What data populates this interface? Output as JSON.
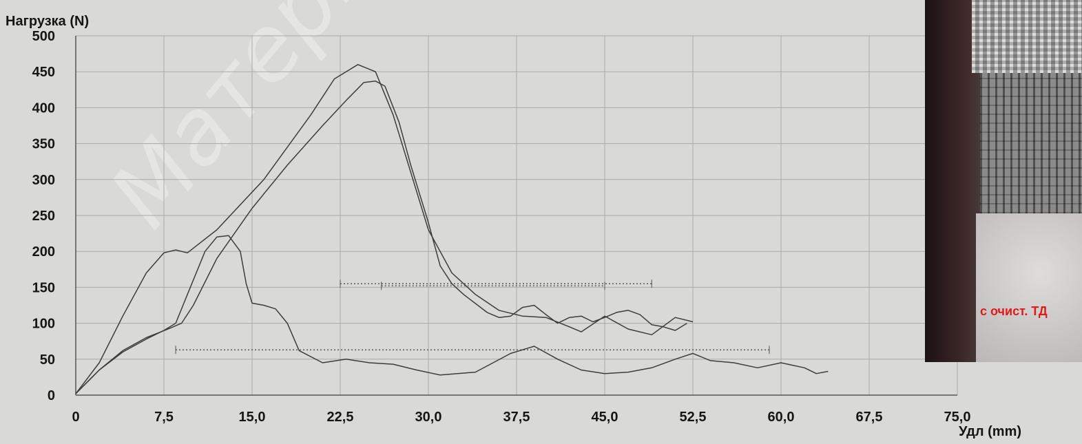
{
  "chart_data": {
    "type": "line",
    "title": "",
    "ylabel": "Нагрузка (N)",
    "xlabel": "Удл (mm)",
    "xlim": [
      0,
      75
    ],
    "ylim": [
      0,
      500
    ],
    "xticks": [
      0,
      7.5,
      15,
      22.5,
      30,
      37.5,
      45,
      52.5,
      60,
      67.5,
      75
    ],
    "xtick_labels": [
      "0",
      "7,5",
      "15,0",
      "22,5",
      "30,0",
      "37,5",
      "45,0",
      "52,5",
      "60,0",
      "67,5",
      "75,0"
    ],
    "yticks": [
      0,
      50,
      100,
      150,
      200,
      250,
      300,
      350,
      400,
      450,
      500
    ],
    "ytick_labels": [
      "0",
      "50",
      "100",
      "150",
      "200",
      "250",
      "300",
      "350",
      "400",
      "450",
      "500"
    ],
    "grid": true,
    "series": [
      {
        "points": [
          [
            0,
            2
          ],
          [
            2,
            45
          ],
          [
            4,
            110
          ],
          [
            6,
            170
          ],
          [
            7.5,
            198
          ],
          [
            8.5,
            202
          ],
          [
            9.5,
            198
          ],
          [
            12,
            230
          ],
          [
            16,
            300
          ],
          [
            20,
            390
          ],
          [
            22,
            440
          ],
          [
            24,
            460
          ],
          [
            25.5,
            450
          ],
          [
            27,
            390
          ],
          [
            28.5,
            310
          ],
          [
            30,
            230
          ],
          [
            32,
            170
          ],
          [
            34,
            140
          ],
          [
            36,
            118
          ],
          [
            38,
            110
          ],
          [
            40,
            108
          ],
          [
            42,
            95
          ],
          [
            43,
            88
          ],
          [
            45,
            110
          ],
          [
            47,
            92
          ],
          [
            49,
            84
          ],
          [
            51,
            108
          ],
          [
            52.5,
            102
          ]
        ]
      },
      {
        "points": [
          [
            0,
            2
          ],
          [
            2,
            35
          ],
          [
            4,
            62
          ],
          [
            6,
            80
          ],
          [
            8,
            93
          ],
          [
            9,
            100
          ],
          [
            10,
            125
          ],
          [
            12,
            190
          ],
          [
            15,
            260
          ],
          [
            18,
            320
          ],
          [
            21,
            375
          ],
          [
            23,
            410
          ],
          [
            24.5,
            435
          ],
          [
            25.5,
            437
          ],
          [
            26.3,
            430
          ],
          [
            27.5,
            380
          ],
          [
            28.5,
            320
          ],
          [
            30,
            240
          ],
          [
            31,
            180
          ],
          [
            32,
            155
          ],
          [
            33,
            140
          ],
          [
            35,
            115
          ],
          [
            36,
            108
          ],
          [
            37,
            110
          ],
          [
            38,
            122
          ],
          [
            39,
            125
          ],
          [
            40,
            112
          ],
          [
            41,
            100
          ],
          [
            42,
            108
          ],
          [
            43,
            110
          ],
          [
            44,
            102
          ],
          [
            45,
            108
          ],
          [
            46,
            115
          ],
          [
            47,
            118
          ],
          [
            48,
            112
          ],
          [
            49,
            98
          ],
          [
            50,
            95
          ],
          [
            51,
            90
          ],
          [
            52,
            100
          ]
        ]
      },
      {
        "points": [
          [
            0,
            2
          ],
          [
            2,
            35
          ],
          [
            4,
            60
          ],
          [
            6,
            78
          ],
          [
            7.5,
            90
          ],
          [
            8.5,
            100
          ],
          [
            9.5,
            140
          ],
          [
            11,
            200
          ],
          [
            12,
            220
          ],
          [
            13,
            222
          ],
          [
            14,
            200
          ],
          [
            14.5,
            155
          ],
          [
            15,
            128
          ],
          [
            16,
            125
          ],
          [
            17,
            120
          ],
          [
            18,
            100
          ],
          [
            19,
            62
          ],
          [
            21,
            45
          ],
          [
            23,
            50
          ],
          [
            25,
            45
          ],
          [
            27,
            43
          ],
          [
            29,
            35
          ],
          [
            31,
            28
          ],
          [
            34,
            32
          ],
          [
            37,
            58
          ],
          [
            39,
            68
          ],
          [
            41,
            50
          ],
          [
            43,
            35
          ],
          [
            45,
            30
          ],
          [
            47,
            32
          ],
          [
            49,
            38
          ],
          [
            51,
            50
          ],
          [
            52.5,
            58
          ],
          [
            54,
            48
          ],
          [
            56,
            45
          ],
          [
            58,
            38
          ],
          [
            60,
            45
          ],
          [
            62,
            38
          ],
          [
            63,
            30
          ],
          [
            64,
            33
          ]
        ]
      }
    ],
    "annotations": [
      {
        "type": "dotted-span",
        "y": 155,
        "x_start": 22.5,
        "x_end": 49
      },
      {
        "type": "dotted-span",
        "y": 152,
        "x_start": 26,
        "x_end": 45
      },
      {
        "type": "dotted-span",
        "y": 63,
        "x_start": 8.5,
        "x_end": 59
      }
    ]
  },
  "watermark": "Материалы Ком",
  "photo": {
    "caption": "с очист. ТД"
  },
  "colors": {
    "background": "#d9d9d7",
    "line": "#3c3c3c",
    "grid": "#a9a9a9",
    "caption": "#e01a1a"
  }
}
